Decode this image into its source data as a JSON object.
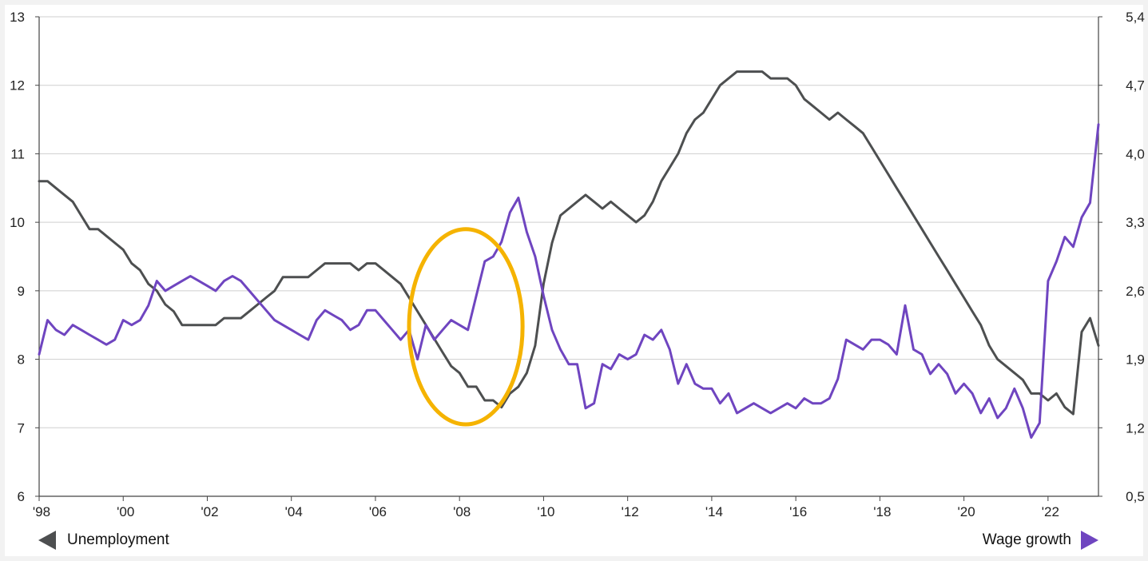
{
  "chart_data": {
    "type": "line",
    "title": "",
    "x_range": [
      1998.0,
      2023.2
    ],
    "x_ticks": [
      {
        "value": 1998,
        "label": "'98"
      },
      {
        "value": 2000,
        "label": "'00"
      },
      {
        "value": 2002,
        "label": "'02"
      },
      {
        "value": 2004,
        "label": "'04"
      },
      {
        "value": 2006,
        "label": "'06"
      },
      {
        "value": 2008,
        "label": "'08"
      },
      {
        "value": 2010,
        "label": "'10"
      },
      {
        "value": 2012,
        "label": "'12"
      },
      {
        "value": 2014,
        "label": "'14"
      },
      {
        "value": 2016,
        "label": "'16"
      },
      {
        "value": 2018,
        "label": "'18"
      },
      {
        "value": 2020,
        "label": "'20"
      },
      {
        "value": 2022,
        "label": "'22"
      }
    ],
    "y_left": {
      "range": [
        6,
        13
      ],
      "ticks": [
        "6",
        "7",
        "8",
        "9",
        "10",
        "11",
        "12",
        "13"
      ]
    },
    "y_right": {
      "range": [
        0.5,
        5.4
      ],
      "ticks": [
        "0,5",
        "1,2",
        "1,9",
        "2,6",
        "3,3",
        "4,0",
        "4,7",
        "5,4"
      ]
    },
    "grid": true,
    "colors": {
      "unemployment": "#4d4f50",
      "wage_growth": "#6f45c0",
      "highlight": "#f5b300"
    },
    "annotation": {
      "type": "ellipse",
      "x": [
        2006.8,
        2009.5
      ],
      "y_left": [
        7.05,
        9.9
      ]
    },
    "series": [
      {
        "name": "Unemployment",
        "axis": "left",
        "points": [
          [
            1998.0,
            10.6
          ],
          [
            1998.2,
            10.6
          ],
          [
            1998.4,
            10.5
          ],
          [
            1998.6,
            10.4
          ],
          [
            1998.8,
            10.3
          ],
          [
            1999.0,
            10.1
          ],
          [
            1999.2,
            9.9
          ],
          [
            1999.4,
            9.9
          ],
          [
            1999.6,
            9.8
          ],
          [
            1999.8,
            9.7
          ],
          [
            2000.0,
            9.6
          ],
          [
            2000.2,
            9.4
          ],
          [
            2000.4,
            9.3
          ],
          [
            2000.6,
            9.1
          ],
          [
            2000.8,
            9.0
          ],
          [
            2001.0,
            8.8
          ],
          [
            2001.2,
            8.7
          ],
          [
            2001.4,
            8.5
          ],
          [
            2001.6,
            8.5
          ],
          [
            2001.8,
            8.5
          ],
          [
            2002.0,
            8.5
          ],
          [
            2002.2,
            8.5
          ],
          [
            2002.4,
            8.6
          ],
          [
            2002.6,
            8.6
          ],
          [
            2002.8,
            8.6
          ],
          [
            2003.0,
            8.7
          ],
          [
            2003.2,
            8.8
          ],
          [
            2003.4,
            8.9
          ],
          [
            2003.6,
            9.0
          ],
          [
            2003.8,
            9.2
          ],
          [
            2004.0,
            9.2
          ],
          [
            2004.2,
            9.2
          ],
          [
            2004.4,
            9.2
          ],
          [
            2004.6,
            9.3
          ],
          [
            2004.8,
            9.4
          ],
          [
            2005.0,
            9.4
          ],
          [
            2005.2,
            9.4
          ],
          [
            2005.4,
            9.4
          ],
          [
            2005.6,
            9.3
          ],
          [
            2005.8,
            9.4
          ],
          [
            2006.0,
            9.4
          ],
          [
            2006.2,
            9.3
          ],
          [
            2006.4,
            9.2
          ],
          [
            2006.6,
            9.1
          ],
          [
            2006.8,
            8.9
          ],
          [
            2007.0,
            8.7
          ],
          [
            2007.2,
            8.5
          ],
          [
            2007.4,
            8.3
          ],
          [
            2007.6,
            8.1
          ],
          [
            2007.8,
            7.9
          ],
          [
            2008.0,
            7.8
          ],
          [
            2008.2,
            7.6
          ],
          [
            2008.4,
            7.6
          ],
          [
            2008.6,
            7.4
          ],
          [
            2008.8,
            7.4
          ],
          [
            2009.0,
            7.3
          ],
          [
            2009.2,
            7.5
          ],
          [
            2009.4,
            7.6
          ],
          [
            2009.6,
            7.8
          ],
          [
            2009.8,
            8.2
          ],
          [
            2010.0,
            9.1
          ],
          [
            2010.2,
            9.7
          ],
          [
            2010.4,
            10.1
          ],
          [
            2010.6,
            10.2
          ],
          [
            2010.8,
            10.3
          ],
          [
            2011.0,
            10.4
          ],
          [
            2011.2,
            10.3
          ],
          [
            2011.4,
            10.2
          ],
          [
            2011.6,
            10.3
          ],
          [
            2011.8,
            10.2
          ],
          [
            2012.0,
            10.1
          ],
          [
            2012.2,
            10.0
          ],
          [
            2012.4,
            10.1
          ],
          [
            2012.6,
            10.3
          ],
          [
            2012.8,
            10.6
          ],
          [
            2013.0,
            10.8
          ],
          [
            2013.2,
            11.0
          ],
          [
            2013.4,
            11.3
          ],
          [
            2013.6,
            11.5
          ],
          [
            2013.8,
            11.6
          ],
          [
            2014.0,
            11.8
          ],
          [
            2014.2,
            12.0
          ],
          [
            2014.4,
            12.1
          ],
          [
            2014.6,
            12.2
          ],
          [
            2014.8,
            12.2
          ],
          [
            2015.0,
            12.2
          ],
          [
            2015.2,
            12.2
          ],
          [
            2015.4,
            12.1
          ],
          [
            2015.6,
            12.1
          ],
          [
            2015.8,
            12.1
          ],
          [
            2016.0,
            12.0
          ],
          [
            2016.2,
            11.8
          ],
          [
            2016.4,
            11.7
          ],
          [
            2016.6,
            11.6
          ],
          [
            2016.8,
            11.5
          ],
          [
            2017.0,
            11.6
          ],
          [
            2017.2,
            11.5
          ],
          [
            2017.4,
            11.4
          ],
          [
            2017.6,
            11.3
          ],
          [
            2017.8,
            11.1
          ],
          [
            2018.0,
            10.9
          ],
          [
            2018.2,
            10.7
          ],
          [
            2018.4,
            10.5
          ],
          [
            2018.6,
            10.3
          ],
          [
            2018.8,
            10.1
          ],
          [
            2019.0,
            9.9
          ],
          [
            2019.2,
            9.7
          ],
          [
            2019.4,
            9.5
          ],
          [
            2019.6,
            9.3
          ],
          [
            2019.8,
            9.1
          ],
          [
            2020.0,
            8.9
          ],
          [
            2020.2,
            8.7
          ],
          [
            2020.4,
            8.5
          ],
          [
            2020.6,
            8.2
          ],
          [
            2020.8,
            8.0
          ],
          [
            2021.0,
            7.9
          ],
          [
            2021.2,
            7.8
          ],
          [
            2021.4,
            7.7
          ],
          [
            2021.6,
            7.5
          ],
          [
            2021.8,
            7.5
          ],
          [
            2022.0,
            7.4
          ],
          [
            2022.2,
            7.5
          ],
          [
            2022.4,
            7.3
          ],
          [
            2022.6,
            7.2
          ],
          [
            2022.8,
            8.4
          ],
          [
            2023.0,
            8.6
          ],
          [
            2023.2,
            8.2
          ]
        ]
      },
      {
        "name": "Wage growth",
        "axis": "right",
        "points": [
          [
            1998.0,
            1.95
          ],
          [
            1998.2,
            2.3
          ],
          [
            1998.4,
            2.2
          ],
          [
            1998.6,
            2.15
          ],
          [
            1998.8,
            2.25
          ],
          [
            1999.0,
            2.2
          ],
          [
            1999.2,
            2.15
          ],
          [
            1999.4,
            2.1
          ],
          [
            1999.6,
            2.05
          ],
          [
            1999.8,
            2.1
          ],
          [
            2000.0,
            2.3
          ],
          [
            2000.2,
            2.25
          ],
          [
            2000.4,
            2.3
          ],
          [
            2000.6,
            2.45
          ],
          [
            2000.8,
            2.7
          ],
          [
            2001.0,
            2.6
          ],
          [
            2001.2,
            2.65
          ],
          [
            2001.4,
            2.7
          ],
          [
            2001.6,
            2.75
          ],
          [
            2001.8,
            2.7
          ],
          [
            2002.0,
            2.65
          ],
          [
            2002.2,
            2.6
          ],
          [
            2002.4,
            2.7
          ],
          [
            2002.6,
            2.75
          ],
          [
            2002.8,
            2.7
          ],
          [
            2003.0,
            2.6
          ],
          [
            2003.2,
            2.5
          ],
          [
            2003.4,
            2.4
          ],
          [
            2003.6,
            2.3
          ],
          [
            2003.8,
            2.25
          ],
          [
            2004.0,
            2.2
          ],
          [
            2004.2,
            2.15
          ],
          [
            2004.4,
            2.1
          ],
          [
            2004.6,
            2.3
          ],
          [
            2004.8,
            2.4
          ],
          [
            2005.0,
            2.35
          ],
          [
            2005.2,
            2.3
          ],
          [
            2005.4,
            2.2
          ],
          [
            2005.6,
            2.25
          ],
          [
            2005.8,
            2.4
          ],
          [
            2006.0,
            2.4
          ],
          [
            2006.2,
            2.3
          ],
          [
            2006.4,
            2.2
          ],
          [
            2006.6,
            2.1
          ],
          [
            2006.8,
            2.2
          ],
          [
            2007.0,
            1.9
          ],
          [
            2007.2,
            2.25
          ],
          [
            2007.4,
            2.1
          ],
          [
            2007.6,
            2.2
          ],
          [
            2007.8,
            2.3
          ],
          [
            2008.0,
            2.25
          ],
          [
            2008.2,
            2.2
          ],
          [
            2008.4,
            2.55
          ],
          [
            2008.6,
            2.9
          ],
          [
            2008.8,
            2.95
          ],
          [
            2009.0,
            3.1
          ],
          [
            2009.2,
            3.4
          ],
          [
            2009.4,
            3.55
          ],
          [
            2009.6,
            3.2
          ],
          [
            2009.8,
            2.95
          ],
          [
            2010.0,
            2.55
          ],
          [
            2010.2,
            2.2
          ],
          [
            2010.4,
            2.0
          ],
          [
            2010.6,
            1.85
          ],
          [
            2010.8,
            1.85
          ],
          [
            2011.0,
            1.4
          ],
          [
            2011.2,
            1.45
          ],
          [
            2011.4,
            1.85
          ],
          [
            2011.6,
            1.8
          ],
          [
            2011.8,
            1.95
          ],
          [
            2012.0,
            1.9
          ],
          [
            2012.2,
            1.95
          ],
          [
            2012.4,
            2.15
          ],
          [
            2012.6,
            2.1
          ],
          [
            2012.8,
            2.2
          ],
          [
            2013.0,
            2.0
          ],
          [
            2013.2,
            1.65
          ],
          [
            2013.4,
            1.85
          ],
          [
            2013.6,
            1.65
          ],
          [
            2013.8,
            1.6
          ],
          [
            2014.0,
            1.6
          ],
          [
            2014.2,
            1.45
          ],
          [
            2014.4,
            1.55
          ],
          [
            2014.6,
            1.35
          ],
          [
            2014.8,
            1.4
          ],
          [
            2015.0,
            1.45
          ],
          [
            2015.2,
            1.4
          ],
          [
            2015.4,
            1.35
          ],
          [
            2015.6,
            1.4
          ],
          [
            2015.8,
            1.45
          ],
          [
            2016.0,
            1.4
          ],
          [
            2016.2,
            1.5
          ],
          [
            2016.4,
            1.45
          ],
          [
            2016.6,
            1.45
          ],
          [
            2016.8,
            1.5
          ],
          [
            2017.0,
            1.7
          ],
          [
            2017.2,
            2.1
          ],
          [
            2017.4,
            2.05
          ],
          [
            2017.6,
            2.0
          ],
          [
            2017.8,
            2.1
          ],
          [
            2018.0,
            2.1
          ],
          [
            2018.2,
            2.05
          ],
          [
            2018.4,
            1.95
          ],
          [
            2018.6,
            2.45
          ],
          [
            2018.8,
            2.0
          ],
          [
            2019.0,
            1.95
          ],
          [
            2019.2,
            1.75
          ],
          [
            2019.4,
            1.85
          ],
          [
            2019.6,
            1.75
          ],
          [
            2019.8,
            1.55
          ],
          [
            2020.0,
            1.65
          ],
          [
            2020.2,
            1.55
          ],
          [
            2020.4,
            1.35
          ],
          [
            2020.6,
            1.5
          ],
          [
            2020.8,
            1.3
          ],
          [
            2021.0,
            1.4
          ],
          [
            2021.2,
            1.6
          ],
          [
            2021.4,
            1.4
          ],
          [
            2021.6,
            1.1
          ],
          [
            2021.8,
            1.25
          ],
          [
            2022.0,
            2.7
          ],
          [
            2022.2,
            2.9
          ],
          [
            2022.4,
            3.15
          ],
          [
            2022.6,
            3.05
          ],
          [
            2022.8,
            3.35
          ],
          [
            2023.0,
            3.5
          ],
          [
            2023.2,
            4.3
          ]
        ]
      }
    ],
    "legend": {
      "placement": "bottom",
      "left": {
        "label": "Unemployment",
        "axis": "left",
        "arrow": "left-arrow-icon"
      },
      "right": {
        "label": "Wage growth",
        "axis": "right",
        "arrow": "right-arrow-icon"
      }
    }
  }
}
